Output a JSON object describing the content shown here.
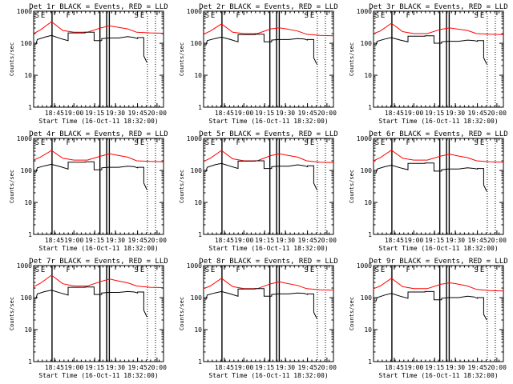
{
  "chart_data": [
    {
      "type": "line",
      "title": "Det 1r BLACK = Events, RED = LLD",
      "xlabel": "Start Time (16-Oct-11 18:32:00)",
      "ylabel": "Counts/sec",
      "ylim": [
        1,
        1000
      ],
      "yscale": "log",
      "xlim": [
        30,
        320
      ],
      "x_tick_labels": [
        "18:45",
        "19:00",
        "19:15",
        "19:30",
        "19:45",
        "20:00"
      ],
      "y_tick_labels": [
        "1",
        "10",
        "100",
        "1000"
      ],
      "markers": [
        "S",
        "E",
        "F",
        "S",
        "E"
      ],
      "series": [
        {
          "color": "#ff0000",
          "x": [
            30,
            45,
            70,
            95,
            120,
            150,
            180,
            200,
            215,
            240,
            260,
            290,
            320
          ],
          "y": [
            200,
            260,
            470,
            250,
            220,
            220,
            300,
            350,
            320,
            280,
            220,
            210,
            205
          ]
        },
        {
          "color": "#000000",
          "x": [
            35,
            38,
            55,
            70,
            90,
            107,
            107,
            145,
            145,
            165,
            165,
            182,
            182,
            197,
            220,
            240,
            255,
            262,
            262,
            276,
            276,
            283
          ],
          "y": [
            90,
            130,
            155,
            175,
            140,
            120,
            210,
            210,
            220,
            220,
            120,
            120,
            140,
            145,
            145,
            160,
            150,
            140,
            150,
            150,
            40,
            25
          ]
        }
      ],
      "vlines_solid": [
        71,
        178,
        193,
        199
      ],
      "vlines_dotted": [
        284,
        302
      ]
    },
    {
      "type": "line",
      "title": "Det 2r BLACK = Events, RED = LLD",
      "xlabel": "Start Time (16-Oct-11 18:32:00)",
      "ylabel": "Counts/sec",
      "ylim": [
        1,
        1000
      ],
      "yscale": "log",
      "xlim": [
        30,
        320
      ],
      "x_tick_labels": [
        "18:45",
        "19:00",
        "19:15",
        "19:30",
        "19:45",
        "20:00"
      ],
      "y_tick_labels": [
        "1",
        "10",
        "100",
        "1000"
      ],
      "markers": [
        "S",
        "E",
        "F",
        "S",
        "E"
      ],
      "series": [
        {
          "color": "#ff0000",
          "x": [
            30,
            45,
            70,
            95,
            120,
            150,
            180,
            200,
            215,
            240,
            260,
            290,
            320
          ],
          "y": [
            190,
            240,
            400,
            220,
            200,
            200,
            280,
            300,
            280,
            240,
            190,
            175,
            170
          ]
        },
        {
          "color": "#000000",
          "x": [
            35,
            38,
            55,
            70,
            90,
            107,
            107,
            145,
            145,
            165,
            165,
            182,
            182,
            197,
            220,
            240,
            255,
            262,
            262,
            276,
            276,
            283
          ],
          "y": [
            85,
            120,
            140,
            155,
            130,
            110,
            185,
            185,
            190,
            190,
            110,
            110,
            125,
            130,
            130,
            140,
            135,
            125,
            130,
            130,
            35,
            22
          ]
        }
      ],
      "vlines_solid": [
        71,
        178,
        193,
        199
      ],
      "vlines_dotted": [
        284,
        302
      ]
    },
    {
      "type": "line",
      "title": "Det 3r BLACK = Events, RED = LLD",
      "xlabel": "Start Time (16-Oct-11 18:32:00)",
      "ylabel": "Counts/sec",
      "ylim": [
        1,
        1000
      ],
      "yscale": "log",
      "xlim": [
        30,
        320
      ],
      "x_tick_labels": [
        "18:45",
        "19:00",
        "19:15",
        "19:30",
        "19:45",
        "20:00"
      ],
      "y_tick_labels": [
        "1",
        "10",
        "100",
        "1000"
      ],
      "markers": [
        "S",
        "E",
        "F",
        "S",
        "E"
      ],
      "series": [
        {
          "color": "#ff0000",
          "x": [
            30,
            45,
            70,
            95,
            120,
            150,
            180,
            200,
            215,
            240,
            260,
            290,
            320
          ],
          "y": [
            200,
            240,
            420,
            230,
            200,
            200,
            270,
            300,
            280,
            250,
            200,
            190,
            185
          ]
        },
        {
          "color": "#000000",
          "x": [
            35,
            38,
            55,
            70,
            90,
            107,
            107,
            145,
            145,
            165,
            165,
            182,
            182,
            197,
            220,
            240,
            255,
            262,
            262,
            276,
            276,
            283
          ],
          "y": [
            85,
            115,
            135,
            150,
            125,
            110,
            165,
            165,
            170,
            170,
            100,
            100,
            110,
            115,
            115,
            125,
            120,
            115,
            120,
            120,
            35,
            22
          ]
        }
      ],
      "vlines_solid": [
        71,
        178,
        193,
        199
      ],
      "vlines_dotted": [
        284,
        302
      ]
    },
    {
      "type": "line",
      "title": "Det 4r BLACK = Events, RED = LLD",
      "xlabel": "Start Time (16-Oct-11 18:32:00)",
      "ylabel": "Counts/sec",
      "ylim": [
        1,
        1000
      ],
      "yscale": "log",
      "xlim": [
        30,
        320
      ],
      "x_tick_labels": [
        "18:45",
        "19:00",
        "19:15",
        "19:30",
        "19:45",
        "20:00"
      ],
      "y_tick_labels": [
        "1",
        "10",
        "100",
        "1000"
      ],
      "markers": [
        "S",
        "E",
        "F",
        "S",
        "E"
      ],
      "series": [
        {
          "color": "#ff0000",
          "x": [
            30,
            45,
            70,
            95,
            120,
            150,
            180,
            200,
            215,
            240,
            260,
            290,
            320
          ],
          "y": [
            210,
            260,
            420,
            240,
            210,
            210,
            280,
            330,
            300,
            260,
            200,
            190,
            185
          ]
        },
        {
          "color": "#000000",
          "x": [
            35,
            38,
            55,
            70,
            90,
            107,
            107,
            145,
            145,
            165,
            165,
            182,
            182,
            197,
            220,
            240,
            255,
            262,
            262,
            276,
            276,
            283
          ],
          "y": [
            85,
            120,
            140,
            155,
            130,
            110,
            180,
            180,
            185,
            185,
            105,
            105,
            120,
            125,
            125,
            135,
            130,
            120,
            125,
            125,
            40,
            25
          ]
        }
      ],
      "vlines_solid": [
        71,
        178,
        193,
        199
      ],
      "vlines_dotted": [
        284,
        302
      ]
    },
    {
      "type": "line",
      "title": "Det 5r BLACK = Events, RED = LLD",
      "xlabel": "Start Time (16-Oct-11 18:32:00)",
      "ylabel": "Counts/sec",
      "ylim": [
        1,
        1000
      ],
      "yscale": "log",
      "xlim": [
        30,
        320
      ],
      "x_tick_labels": [
        "18:45",
        "19:00",
        "19:15",
        "19:30",
        "19:45",
        "20:00"
      ],
      "y_tick_labels": [
        "1",
        "10",
        "100",
        "1000"
      ],
      "markers": [
        "S",
        "E",
        "F",
        "S",
        "E"
      ],
      "series": [
        {
          "color": "#ff0000",
          "x": [
            30,
            45,
            70,
            95,
            120,
            150,
            180,
            200,
            215,
            240,
            260,
            290,
            320
          ],
          "y": [
            190,
            240,
            420,
            230,
            200,
            200,
            290,
            330,
            300,
            260,
            200,
            180,
            175
          ]
        },
        {
          "color": "#000000",
          "x": [
            35,
            38,
            55,
            70,
            90,
            107,
            107,
            145,
            145,
            165,
            165,
            182,
            182,
            197,
            220,
            240,
            255,
            262,
            262,
            276,
            276,
            283
          ],
          "y": [
            90,
            125,
            150,
            165,
            135,
            115,
            195,
            195,
            200,
            200,
            115,
            115,
            130,
            135,
            135,
            150,
            140,
            130,
            140,
            140,
            40,
            25
          ]
        }
      ],
      "vlines_solid": [
        71,
        178,
        193,
        199
      ],
      "vlines_dotted": [
        284,
        302
      ]
    },
    {
      "type": "line",
      "title": "Det 6r BLACK = Events, RED = LLD",
      "xlabel": "Start Time (16-Oct-11 18:32:00)",
      "ylabel": "Counts/sec",
      "ylim": [
        1,
        1000
      ],
      "yscale": "log",
      "xlim": [
        30,
        320
      ],
      "x_tick_labels": [
        "18:45",
        "19:00",
        "19:15",
        "19:30",
        "19:45",
        "20:00"
      ],
      "y_tick_labels": [
        "1",
        "10",
        "100",
        "1000"
      ],
      "markers": [
        "S",
        "E",
        "F",
        "S",
        "E"
      ],
      "series": [
        {
          "color": "#ff0000",
          "x": [
            30,
            45,
            70,
            95,
            120,
            150,
            180,
            200,
            215,
            240,
            260,
            290,
            320
          ],
          "y": [
            200,
            250,
            430,
            240,
            210,
            210,
            280,
            320,
            290,
            250,
            200,
            185,
            180
          ]
        },
        {
          "color": "#000000",
          "x": [
            35,
            38,
            55,
            70,
            90,
            107,
            107,
            145,
            145,
            165,
            165,
            182,
            182,
            197,
            220,
            240,
            255,
            262,
            262,
            276,
            276,
            283
          ],
          "y": [
            80,
            110,
            130,
            145,
            120,
            105,
            165,
            165,
            170,
            170,
            95,
            95,
            105,
            110,
            110,
            120,
            115,
            110,
            115,
            115,
            35,
            22
          ]
        }
      ],
      "vlines_solid": [
        71,
        178,
        193,
        199
      ],
      "vlines_dotted": [
        284,
        302
      ]
    },
    {
      "type": "line",
      "title": "Det 7r BLACK = Events, RED = LLD",
      "xlabel": "Start Time (16-Oct-11 18:32:00)",
      "ylabel": "Counts/sec",
      "ylim": [
        1,
        1000
      ],
      "yscale": "log",
      "xlim": [
        30,
        320
      ],
      "x_tick_labels": [
        "18:45",
        "19:00",
        "19:15",
        "19:30",
        "19:45",
        "20:00"
      ],
      "y_tick_labels": [
        "1",
        "10",
        "100",
        "1000"
      ],
      "markers": [
        "S",
        "E",
        "F",
        "S",
        "E"
      ],
      "series": [
        {
          "color": "#ff0000",
          "x": [
            30,
            45,
            70,
            95,
            120,
            150,
            180,
            200,
            215,
            240,
            260,
            290,
            320
          ],
          "y": [
            220,
            280,
            500,
            270,
            230,
            230,
            320,
            380,
            340,
            290,
            230,
            210,
            205
          ]
        },
        {
          "color": "#000000",
          "x": [
            35,
            38,
            55,
            70,
            90,
            107,
            107,
            145,
            145,
            165,
            165,
            182,
            182,
            197,
            220,
            240,
            255,
            262,
            262,
            276,
            276,
            283
          ],
          "y": [
            90,
            130,
            155,
            170,
            140,
            120,
            210,
            210,
            215,
            215,
            125,
            125,
            140,
            145,
            145,
            155,
            150,
            140,
            150,
            150,
            40,
            25
          ]
        }
      ],
      "vlines_solid": [
        71,
        178,
        193,
        199
      ],
      "vlines_dotted": [
        284,
        302
      ]
    },
    {
      "type": "line",
      "title": "Det 8r BLACK = Events, RED = LLD",
      "xlabel": "Start Time (16-Oct-11 18:32:00)",
      "ylabel": "Counts/sec",
      "ylim": [
        1,
        1000
      ],
      "yscale": "log",
      "xlim": [
        30,
        320
      ],
      "x_tick_labels": [
        "18:45",
        "19:00",
        "19:15",
        "19:30",
        "19:45",
        "20:00"
      ],
      "y_tick_labels": [
        "1",
        "10",
        "100",
        "1000"
      ],
      "markers": [
        "S",
        "E",
        "F",
        "S",
        "E"
      ],
      "series": [
        {
          "color": "#ff0000",
          "x": [
            30,
            45,
            70,
            95,
            120,
            150,
            180,
            200,
            215,
            240,
            260,
            290,
            320
          ],
          "y": [
            190,
            230,
            400,
            220,
            190,
            190,
            270,
            310,
            280,
            240,
            190,
            175,
            170
          ]
        },
        {
          "color": "#000000",
          "x": [
            35,
            38,
            55,
            70,
            90,
            107,
            107,
            145,
            145,
            165,
            165,
            182,
            182,
            197,
            220,
            240,
            255,
            262,
            262,
            276,
            276,
            283
          ],
          "y": [
            85,
            120,
            140,
            155,
            130,
            110,
            185,
            185,
            190,
            190,
            110,
            110,
            125,
            130,
            130,
            140,
            135,
            125,
            130,
            130,
            35,
            22
          ]
        }
      ],
      "vlines_solid": [
        71,
        178,
        193,
        199
      ],
      "vlines_dotted": [
        284,
        302
      ]
    },
    {
      "type": "line",
      "title": "Det 9r BLACK = Events, RED = LLD",
      "xlabel": "Start Time (16-Oct-11 18:32:00)",
      "ylabel": "Counts/sec",
      "ylim": [
        1,
        1000
      ],
      "yscale": "log",
      "xlim": [
        30,
        320
      ],
      "x_tick_labels": [
        "18:45",
        "19:00",
        "19:15",
        "19:30",
        "19:45",
        "20:00"
      ],
      "y_tick_labels": [
        "1",
        "10",
        "100",
        "1000"
      ],
      "markers": [
        "S",
        "E",
        "F",
        "S",
        "E"
      ],
      "series": [
        {
          "color": "#ff0000",
          "x": [
            30,
            45,
            70,
            95,
            120,
            150,
            180,
            200,
            215,
            240,
            260,
            290,
            320
          ],
          "y": [
            190,
            230,
            400,
            220,
            190,
            190,
            260,
            290,
            270,
            230,
            180,
            165,
            160
          ]
        },
        {
          "color": "#000000",
          "x": [
            35,
            38,
            55,
            70,
            90,
            107,
            107,
            145,
            145,
            165,
            165,
            182,
            182,
            197,
            220,
            240,
            255,
            262,
            262,
            276,
            276,
            283
          ],
          "y": [
            75,
            100,
            120,
            135,
            110,
            95,
            150,
            150,
            155,
            155,
            85,
            85,
            95,
            100,
            100,
            110,
            105,
            95,
            100,
            100,
            30,
            20
          ]
        }
      ],
      "vlines_solid": [
        71,
        178,
        193,
        199
      ],
      "vlines_dotted": [
        284,
        302
      ]
    }
  ]
}
